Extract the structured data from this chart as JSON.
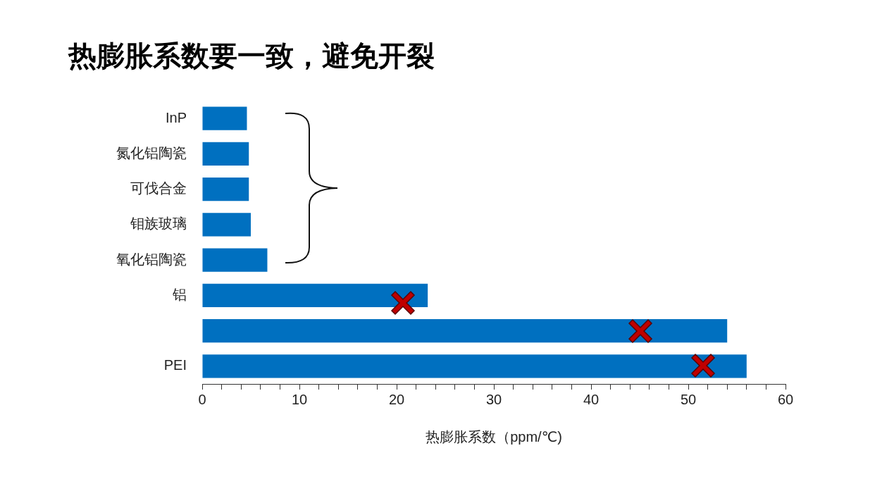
{
  "chart_data": {
    "type": "bar",
    "orientation": "horizontal",
    "title": "热膨胀系数要一致，避免开裂",
    "xlabel": "热膨胀系数（ppm/℃)",
    "categories": [
      "InP",
      "氮化铝陶瓷",
      "可伐合金",
      "钼族玻璃",
      "氧化铝陶瓷",
      "铝",
      null,
      "PEI"
    ],
    "values": [
      4.6,
      4.8,
      4.8,
      5.0,
      6.7,
      23.2,
      54,
      56
    ],
    "color": "#0070c0",
    "xlim": [
      0,
      60
    ],
    "xticks": [
      0,
      {
        "value": 2,
        "label": null
      },
      {
        "value": 4,
        "label": null
      },
      {
        "value": 6,
        "label": null
      },
      {
        "value": 8,
        "label": null
      },
      10,
      {
        "value": 12,
        "label": null
      },
      {
        "value": 14,
        "label": null
      },
      {
        "value": 16,
        "label": null
      },
      {
        "value": 18,
        "label": null
      },
      20,
      {
        "value": 22,
        "label": null
      },
      {
        "value": 24,
        "label": null
      },
      {
        "value": 26,
        "label": null
      },
      {
        "value": 28,
        "label": null
      },
      30,
      {
        "value": 32,
        "label": null
      },
      {
        "value": 34,
        "label": null
      },
      {
        "value": 36,
        "label": null
      },
      {
        "value": 38,
        "label": null
      },
      40,
      {
        "value": 42,
        "label": null
      },
      {
        "value": 44,
        "label": null
      },
      {
        "value": 46,
        "label": null
      },
      {
        "value": 48,
        "label": null
      },
      50,
      {
        "value": 52,
        "label": null
      },
      {
        "value": 54,
        "label": null
      },
      {
        "value": 56,
        "label": null
      },
      {
        "value": 58,
        "label": null
      },
      60
    ],
    "grid": false,
    "legend": false
  }
}
